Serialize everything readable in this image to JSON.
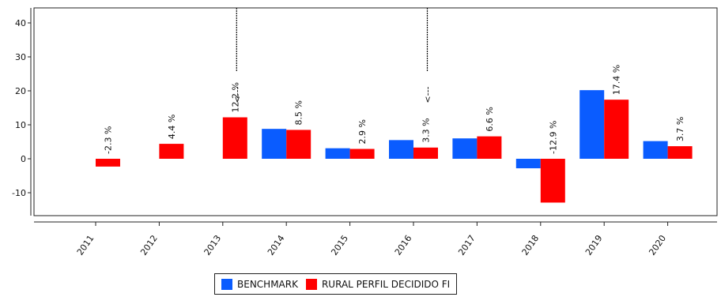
{
  "chart_data": {
    "type": "bar",
    "categories": [
      "2011",
      "2012",
      "2013",
      "2014",
      "2015",
      "2016",
      "2017",
      "2018",
      "2019",
      "2020"
    ],
    "series": [
      {
        "name": "BENCHMARK",
        "color": "#0a5cff",
        "values": [
          null,
          null,
          null,
          8.8,
          3.1,
          5.5,
          6.0,
          -2.8,
          20.2,
          5.2
        ]
      },
      {
        "name": "RURAL PERFIL DECIDIDO FI",
        "color": "#ff0000",
        "values": [
          -2.3,
          4.4,
          12.2,
          8.5,
          2.9,
          3.3,
          6.6,
          -12.9,
          17.4,
          3.7
        ],
        "labels": [
          "-2.3 %",
          "4.4 %",
          "12.2 %",
          "8.5 %",
          "2.9 %",
          "3.3 %",
          "6.6 %",
          "-12.9 %",
          "17.4 %",
          "3.7 %"
        ]
      }
    ],
    "yticks": [
      40,
      30,
      20,
      10,
      0,
      -10
    ],
    "ylim": [
      -16.5,
      44.5
    ],
    "marker_labels": [
      {
        "category": "2013",
        "text": "<---"
      },
      {
        "category": "2016",
        "text": "<---"
      }
    ],
    "grid": false,
    "legend": "bottom-center",
    "title": "",
    "xlabel": "",
    "ylabel": ""
  }
}
